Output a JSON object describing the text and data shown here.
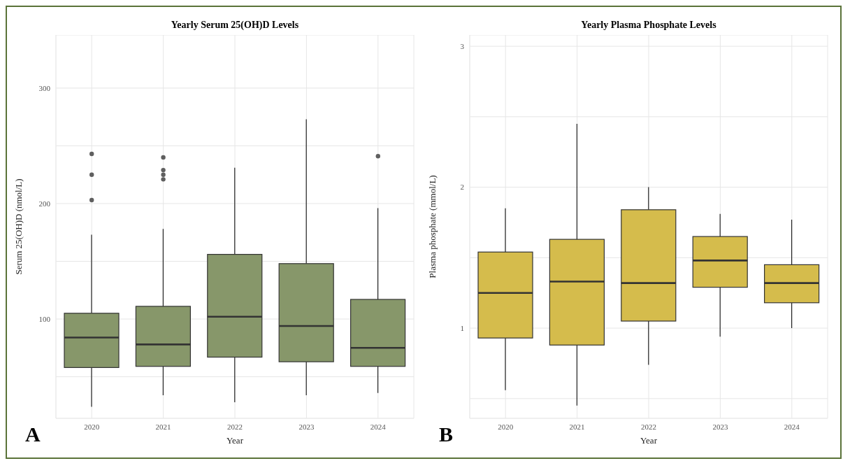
{
  "chart_data": [
    {
      "type": "box",
      "title": "Yearly Serum 25(OH)D Levels",
      "xlabel": "Year",
      "ylabel": "Serum 25(OH)D (nmol/L)",
      "categories": [
        "2020",
        "2021",
        "2022",
        "2023",
        "2024"
      ],
      "series": [
        {
          "color": "#87976a",
          "boxes": [
            {
              "low": 24,
              "q1": 58,
              "median": 84,
              "q3": 105,
              "high": 173,
              "outliers": [
                203,
                225,
                243
              ]
            },
            {
              "low": 34,
              "q1": 59,
              "median": 78,
              "q3": 111,
              "high": 178,
              "outliers": [
                221,
                225,
                229,
                240
              ]
            },
            {
              "low": 28,
              "q1": 67,
              "median": 102,
              "q3": 156,
              "high": 231
            },
            {
              "low": 34,
              "q1": 63,
              "median": 94,
              "q3": 148,
              "high": 273
            },
            {
              "low": 36,
              "q1": 59,
              "median": 75,
              "q3": 117,
              "high": 196,
              "outliers": [
                241
              ]
            }
          ]
        }
      ],
      "ylim": [
        14,
        346
      ],
      "yticks": [
        {
          "value": 50,
          "label": null
        },
        100,
        {
          "value": 150,
          "label": null
        },
        200,
        {
          "value": 250,
          "label": null
        },
        300
      ],
      "grid": true,
      "annotations": [
        "A"
      ]
    },
    {
      "type": "box",
      "title": "Yearly Plasma Phosphate Levels",
      "xlabel": "Year",
      "ylabel": "Plasma phosphate (mmol/L)",
      "categories": [
        "2020",
        "2021",
        "2022",
        "2023",
        "2024"
      ],
      "series": [
        {
          "color": "#d5bc4c",
          "boxes": [
            {
              "low": 0.56,
              "q1": 0.93,
              "median": 1.25,
              "q3": 1.54,
              "high": 1.85
            },
            {
              "low": 0.45,
              "q1": 0.88,
              "median": 1.33,
              "q3": 1.63,
              "high": 2.45
            },
            {
              "low": 0.74,
              "q1": 1.05,
              "median": 1.32,
              "q3": 1.84,
              "high": 2.0
            },
            {
              "low": 0.94,
              "q1": 1.29,
              "median": 1.48,
              "q3": 1.65,
              "high": 1.81
            },
            {
              "low": 1.0,
              "q1": 1.18,
              "median": 1.32,
              "q3": 1.45,
              "high": 1.77
            }
          ]
        }
      ],
      "ylim": [
        0.36,
        3.08
      ],
      "yticks": [
        {
          "value": 0.5,
          "label": null
        },
        1,
        {
          "value": 1.5,
          "label": null
        },
        2,
        {
          "value": 2.5,
          "label": null
        },
        3
      ],
      "grid": true,
      "annotations": [
        "B"
      ]
    }
  ]
}
